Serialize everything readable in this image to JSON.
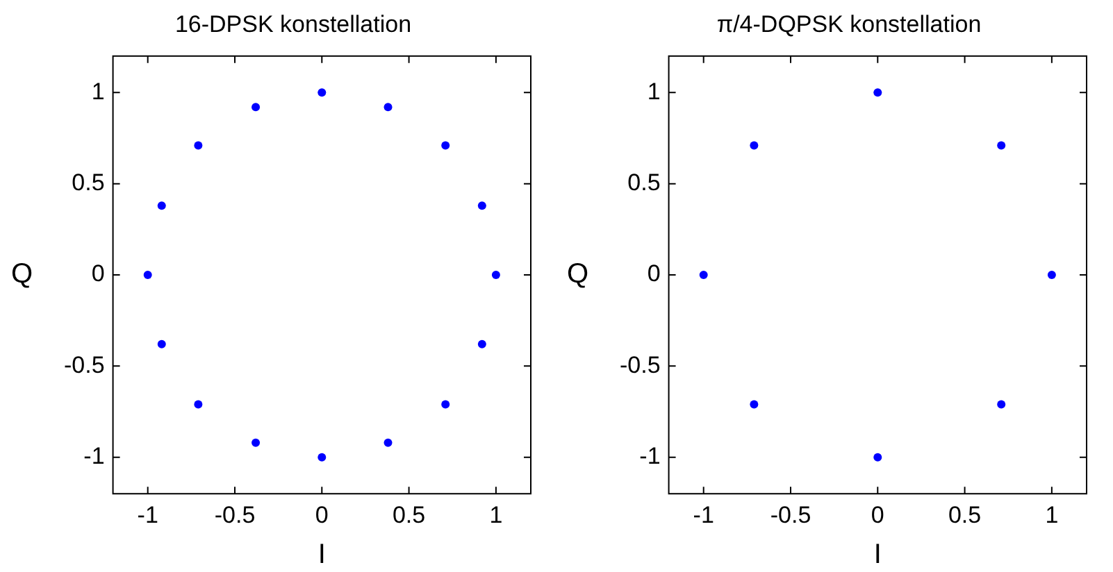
{
  "chart_data": [
    {
      "type": "scatter",
      "title": "16-DPSK konstellation",
      "xlabel": "I",
      "ylabel": "Q",
      "xlim": [
        -1.2,
        1.2
      ],
      "ylim": [
        -1.2,
        1.2
      ],
      "xticks": [
        -1,
        -0.5,
        0,
        0.5,
        1
      ],
      "yticks": [
        -1,
        -0.5,
        0,
        0.5,
        1
      ],
      "grid": false,
      "legend": false,
      "marker": "circle",
      "series": [
        {
          "color": "#0000ff",
          "x": [
            1,
            0.92,
            0.71,
            0.38,
            0,
            -0.38,
            -0.71,
            -0.92,
            -1,
            -0.92,
            -0.71,
            -0.38,
            0,
            0.38,
            0.71,
            0.92
          ],
          "values": [
            0,
            0.38,
            0.71,
            0.92,
            1,
            0.92,
            0.71,
            0.38,
            0,
            -0.38,
            -0.71,
            -0.92,
            -1,
            -0.92,
            -0.71,
            -0.38
          ]
        }
      ]
    },
    {
      "type": "scatter",
      "title": "π/4-DQPSK konstellation",
      "xlabel": "I",
      "ylabel": "Q",
      "xlim": [
        -1.2,
        1.2
      ],
      "ylim": [
        -1.2,
        1.2
      ],
      "xticks": [
        -1,
        -0.5,
        0,
        0.5,
        1
      ],
      "yticks": [
        -1,
        -0.5,
        0,
        0.5,
        1
      ],
      "grid": false,
      "legend": false,
      "marker": "circle",
      "series": [
        {
          "color": "#0000ff",
          "x": [
            1,
            0.71,
            0,
            -0.71,
            -1,
            -0.71,
            0,
            0.71
          ],
          "values": [
            0,
            0.71,
            1,
            0.71,
            0,
            -0.71,
            -1,
            -0.71
          ]
        }
      ]
    }
  ]
}
